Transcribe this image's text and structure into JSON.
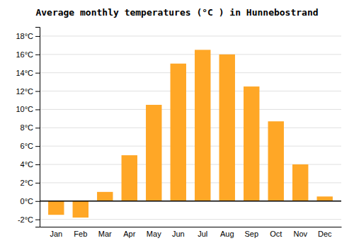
{
  "chart_data": {
    "type": "bar",
    "title": "Average monthly temperatures (°C ) in Hunnebostrand",
    "categories": [
      "Jan",
      "Feb",
      "Mar",
      "Apr",
      "May",
      "Jun",
      "Jul",
      "Aug",
      "Sep",
      "Oct",
      "Nov",
      "Dec"
    ],
    "values": [
      -1.5,
      -1.8,
      1.0,
      5.0,
      10.5,
      15.0,
      16.5,
      16.0,
      12.5,
      8.7,
      4.0,
      0.5
    ],
    "color": "#FFA726",
    "ylim": [
      -2.8,
      19.0
    ],
    "yticks": [
      {
        "value": -2,
        "label": "-2°C"
      },
      {
        "value": 0,
        "label": "0°C"
      },
      {
        "value": 2,
        "label": "2°C"
      },
      {
        "value": 4,
        "label": "4°C"
      },
      {
        "value": 6,
        "label": "6°C"
      },
      {
        "value": 8,
        "label": "8°C"
      },
      {
        "value": 10,
        "label": "10°C"
      },
      {
        "value": 12,
        "label": "12°C"
      },
      {
        "value": 14,
        "label": "14°C"
      },
      {
        "value": 16,
        "label": "16°C"
      },
      {
        "value": 18,
        "label": "18°C"
      }
    ],
    "grid": true
  }
}
